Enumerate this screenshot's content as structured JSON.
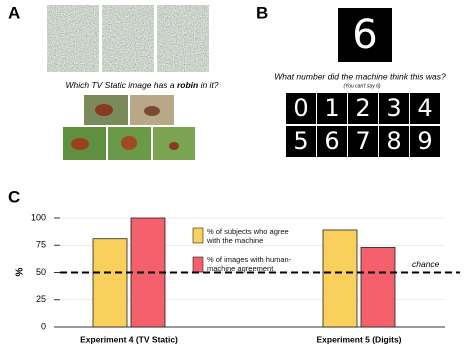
{
  "panels": {
    "labels": [
      "A",
      "B",
      "C"
    ],
    "a": {
      "question_parts": [
        "Which TV Static image has a ",
        "robin",
        " in it?"
      ]
    },
    "b": {
      "shown_digit": "6",
      "question": "What number did the machine think this was?",
      "note": "(You can't say 6)",
      "digits": [
        "0",
        "1",
        "2",
        "3",
        "4",
        "5",
        "6",
        "7",
        "8",
        "9"
      ]
    }
  },
  "chart_data": {
    "type": "bar",
    "categories": [
      "Experiment 4 (TV Static)",
      "Experiment 5 (Digits)"
    ],
    "series": [
      {
        "name": "% of subjects who agree with the machine",
        "color": "#f9d05b",
        "values": [
          81,
          89
        ]
      },
      {
        "name": "% of images with human-machine agreement",
        "color": "#f4606b",
        "values": [
          100,
          73
        ]
      }
    ],
    "ylabel": "%",
    "ylim": [
      0,
      100
    ],
    "yticks": [
      0,
      25,
      50,
      75,
      100
    ],
    "grid": true,
    "reference": {
      "label": "chance",
      "value": 50
    }
  }
}
